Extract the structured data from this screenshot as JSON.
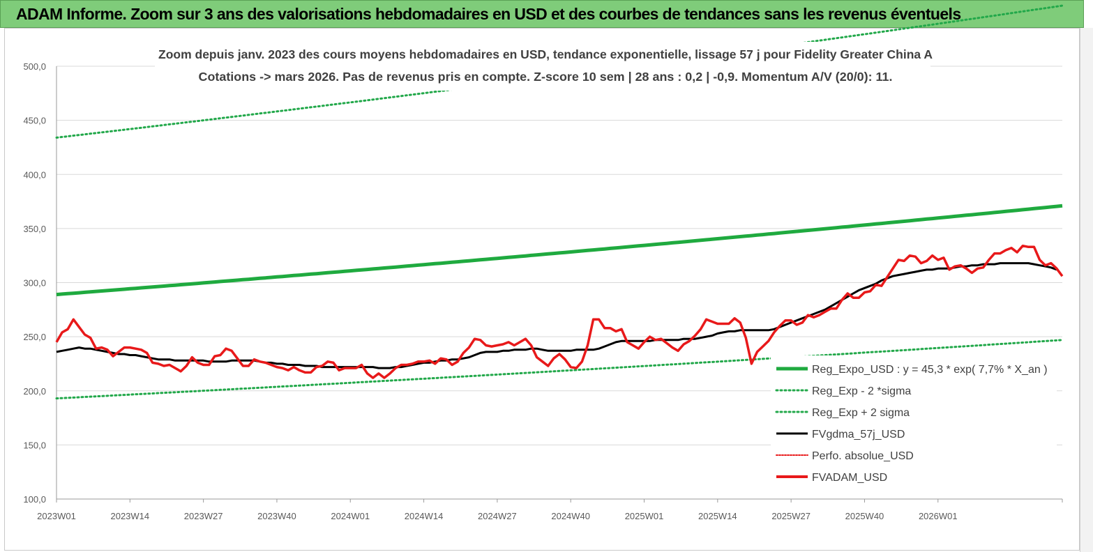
{
  "header": {
    "title": "ADAM Informe. Zoom sur 3 ans des valorisations hebdomadaires en USD et des courbes de tendances sans les revenus éventuels"
  },
  "colors": {
    "header_bg": "#7fcc7a",
    "reg_green": "#1faa3f",
    "sigma_green": "#22a84a",
    "fvgdma": "#000000",
    "fvadam": "#e8191a",
    "perfo": "#e8191a"
  },
  "chart_data": {
    "type": "line",
    "title": "Zoom depuis janv. 2023 des cours moyens hebdomadaires en USD, tendance exponentielle, lissage 57 j pour Fidelity Greater China A",
    "subtitle": "Cotations -> mars 2026. Pas de revenus pris en compte. Z-score 10 sem  | 28 ans : 0,2 | -0,9. Momentum A/V (20/0): 11.",
    "ylim": [
      100,
      500
    ],
    "yticks": [
      "100,0",
      "150,0",
      "200,0",
      "250,0",
      "300,0",
      "350,0",
      "400,0",
      "450,0",
      "500,0"
    ],
    "xticks": [
      "2023W01",
      "2023W14",
      "2023W27",
      "2023W40",
      "2024W01",
      "2024W14",
      "2024W27",
      "2024W40",
      "2025W01",
      "2025W14",
      "2025W27",
      "2025W40",
      "2026W01"
    ],
    "grid": "horizontal",
    "legend_position": "right",
    "series": [
      {
        "name": "Reg_Expo_USD : y = 45,3 * exp( 7,7% *  X_an )",
        "style": "solid-thick",
        "color": "#1faa3f",
        "start": 289,
        "end": 371
      },
      {
        "name": "Reg_Exp - 2 *sigma",
        "style": "dotted",
        "color": "#22a84a",
        "start": 193,
        "end": 247
      },
      {
        "name": "Reg_Exp + 2 sigma",
        "style": "dotted",
        "color": "#22a84a",
        "start": 434,
        "end": 556
      },
      {
        "name": "FVgdma_57j_USD",
        "style": "solid",
        "color": "#000000",
        "values": [
          236,
          237,
          238,
          239,
          240,
          239,
          239,
          238,
          237,
          236,
          235,
          234,
          234,
          233,
          233,
          232,
          231,
          230,
          229,
          229,
          229,
          228,
          228,
          228,
          228,
          228,
          228,
          227,
          227,
          227,
          227,
          228,
          228,
          228,
          228,
          228,
          227,
          226,
          226,
          225,
          225,
          224,
          224,
          224,
          223,
          223,
          223,
          222,
          222,
          222,
          222,
          222,
          222,
          222,
          222,
          222,
          222,
          221,
          221,
          221,
          222,
          222,
          223,
          224,
          225,
          226,
          226,
          227,
          228,
          228,
          229,
          229,
          230,
          231,
          233,
          235,
          236,
          236,
          236,
          237,
          237,
          238,
          238,
          238,
          239,
          239,
          238,
          237,
          237,
          237,
          237,
          237,
          238,
          238,
          238,
          238,
          239,
          241,
          243,
          245,
          246,
          246,
          246,
          246,
          246,
          246,
          247,
          247,
          247,
          247,
          247,
          248,
          248,
          248,
          249,
          250,
          251,
          253,
          254,
          255,
          255,
          256,
          256,
          256,
          256,
          256,
          256,
          257,
          259,
          261,
          263,
          265,
          267,
          269,
          271,
          273,
          275,
          278,
          281,
          284,
          287,
          290,
          293,
          295,
          297,
          299,
          302,
          304,
          306,
          307,
          308,
          309,
          310,
          311,
          312,
          312,
          313,
          313,
          313,
          314,
          315,
          315,
          316,
          316,
          317,
          317,
          317,
          318,
          318,
          318,
          318,
          318,
          318,
          317,
          316,
          315,
          314,
          312
        ]
      },
      {
        "name": "Perfo. absolue_USD",
        "style": "dotted",
        "color": "#e8191a"
      },
      {
        "name": "FVADAM_USD",
        "style": "solid-thick",
        "color": "#e8191a",
        "values": [
          245,
          254,
          257,
          266,
          259,
          252,
          249,
          239,
          240,
          238,
          232,
          236,
          240,
          240,
          239,
          238,
          235,
          226,
          225,
          223,
          224,
          221,
          218,
          223,
          231,
          226,
          224,
          224,
          232,
          233,
          239,
          237,
          230,
          223,
          223,
          229,
          227,
          226,
          224,
          222,
          221,
          219,
          222,
          219,
          217,
          217,
          222,
          223,
          227,
          226,
          219,
          221,
          221,
          221,
          224,
          216,
          212,
          216,
          212,
          216,
          221,
          224,
          224,
          225,
          227,
          227,
          228,
          225,
          230,
          229,
          224,
          227,
          235,
          240,
          248,
          247,
          242,
          241,
          242,
          243,
          245,
          242,
          245,
          248,
          242,
          231,
          227,
          223,
          230,
          234,
          229,
          222,
          221,
          227,
          242,
          266,
          266,
          258,
          258,
          255,
          257,
          245,
          242,
          239,
          245,
          250,
          247,
          248,
          244,
          240,
          237,
          243,
          246,
          251,
          257,
          266,
          264,
          262,
          262,
          262,
          267,
          263,
          249,
          225,
          236,
          241,
          246,
          254,
          260,
          265,
          265,
          261,
          263,
          270,
          268,
          270,
          273,
          276,
          276,
          284,
          290,
          286,
          286,
          291,
          292,
          298,
          297,
          305,
          313,
          321,
          320,
          325,
          324,
          318,
          320,
          325,
          321,
          323,
          312,
          315,
          316,
          313,
          309,
          313,
          314,
          321,
          327,
          327,
          330,
          332,
          328,
          334,
          333,
          333,
          321,
          316,
          318,
          313,
          306
        ]
      }
    ]
  }
}
